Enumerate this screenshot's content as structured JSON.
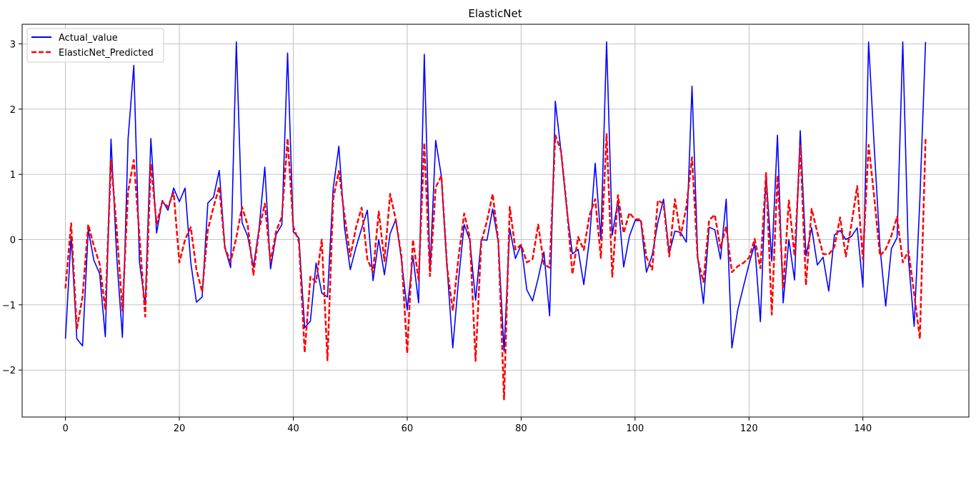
{
  "chart_data": {
    "type": "line",
    "title": "ElasticNet",
    "xlabel": "",
    "ylabel": "",
    "xlim": [
      -7.6,
      158.6
    ],
    "ylim": [
      -2.72,
      3.3
    ],
    "xticks": [
      0,
      20,
      40,
      60,
      80,
      100,
      120,
      140
    ],
    "yticks": [
      -2,
      -1,
      0,
      1,
      2,
      3
    ],
    "xtick_labels": [
      "0",
      "20",
      "40",
      "60",
      "80",
      "100",
      "120",
      "140"
    ],
    "ytick_labels": [
      "−2",
      "−1",
      "0",
      "1",
      "2",
      "3"
    ],
    "grid": true,
    "legend_position": "upper left",
    "series": [
      {
        "name": "Actual_value",
        "color": "#0000ff",
        "style": "solid",
        "values": [
          -1.52,
          0.05,
          -1.52,
          -1.63,
          0.15,
          -0.32,
          -0.52,
          -1.49,
          1.54,
          -0.26,
          -1.5,
          1.55,
          2.67,
          -0.35,
          -1.0,
          1.55,
          0.1,
          0.6,
          0.45,
          0.79,
          0.58,
          0.79,
          -0.35,
          -0.96,
          -0.88,
          0.56,
          0.65,
          1.06,
          -0.13,
          -0.43,
          3.03,
          0.26,
          0.05,
          -0.42,
          0.18,
          1.11,
          -0.45,
          0.08,
          0.23,
          2.86,
          0.12,
          0.02,
          -1.35,
          -1.25,
          -0.36,
          -0.82,
          -0.88,
          0.78,
          1.43,
          0.18,
          -0.46,
          -0.12,
          0.17,
          0.45,
          -0.63,
          0.0,
          -0.54,
          0.09,
          0.31,
          -0.32,
          -1.08,
          -0.25,
          -0.97,
          2.84,
          -0.49,
          1.52,
          0.97,
          -0.43,
          -1.66,
          -0.63,
          0.23,
          -0.01,
          -0.93,
          0.0,
          -0.01,
          0.47,
          -0.05,
          -1.71,
          0.17,
          -0.29,
          -0.08,
          -0.77,
          -0.94,
          -0.59,
          -0.19,
          -1.17,
          2.12,
          1.35,
          0.48,
          -0.22,
          -0.15,
          -0.69,
          0.0,
          1.17,
          0.0,
          3.03,
          0.07,
          0.6,
          -0.42,
          0.05,
          0.29,
          0.29,
          -0.5,
          -0.24,
          0.26,
          0.62,
          -0.21,
          0.13,
          0.11,
          -0.04,
          2.35,
          -0.27,
          -0.98,
          0.19,
          0.15,
          -0.3,
          0.62,
          -1.66,
          -1.09,
          -0.73,
          -0.38,
          -0.07,
          -1.26,
          1.0,
          -0.33,
          1.6,
          -0.97,
          0.0,
          -0.62,
          1.67,
          -0.25,
          0.18,
          -0.39,
          -0.27,
          -0.79,
          0.07,
          0.14,
          0.0,
          0.05,
          0.18,
          -0.73,
          3.03,
          1.4,
          -0.12,
          -1.02,
          -0.14,
          0.03,
          3.03,
          -0.3,
          -1.33,
          0.62,
          3.03
        ]
      },
      {
        "name": "ElasticNet_Predicted",
        "color": "#ff0000",
        "style": "dashed",
        "values": [
          -0.75,
          0.25,
          -1.37,
          -0.88,
          0.23,
          -0.1,
          -0.37,
          -1.08,
          1.22,
          0.16,
          -1.09,
          0.74,
          1.22,
          0.05,
          -1.18,
          1.16,
          0.24,
          0.58,
          0.5,
          0.72,
          -0.35,
          0.0,
          0.19,
          -0.46,
          -0.8,
          0.15,
          0.5,
          0.81,
          -0.13,
          -0.34,
          0.03,
          0.5,
          0.22,
          -0.54,
          0.15,
          0.55,
          -0.34,
          0.13,
          0.35,
          1.55,
          0.2,
          -0.04,
          -1.73,
          -0.57,
          -0.65,
          0.0,
          -1.85,
          0.62,
          1.05,
          0.37,
          -0.26,
          0.18,
          0.49,
          -0.3,
          -0.5,
          0.43,
          -0.33,
          0.7,
          0.3,
          -0.26,
          -1.74,
          0.0,
          -0.62,
          1.48,
          -0.56,
          0.8,
          0.98,
          -0.42,
          -1.09,
          -0.28,
          0.4,
          0.03,
          -1.86,
          -0.04,
          0.28,
          0.7,
          -0.03,
          -2.45,
          0.5,
          -0.15,
          -0.08,
          -0.35,
          -0.3,
          0.23,
          -0.38,
          -0.43,
          1.6,
          1.36,
          0.51,
          -0.53,
          0.04,
          -0.16,
          0.37,
          0.62,
          -0.28,
          1.62,
          -0.57,
          0.68,
          0.1,
          0.41,
          0.31,
          0.31,
          -0.27,
          -0.46,
          0.6,
          0.55,
          -0.26,
          0.62,
          0.06,
          0.5,
          1.26,
          -0.3,
          -0.65,
          0.3,
          0.38,
          -0.13,
          0.2,
          -0.5,
          -0.41,
          -0.36,
          -0.28,
          0.01,
          -0.44,
          1.02,
          -1.15,
          0.98,
          -0.75,
          0.6,
          -0.25,
          1.44,
          -0.7,
          0.47,
          0.11,
          -0.22,
          -0.23,
          -0.11,
          0.34,
          -0.26,
          0.24,
          0.82,
          -0.3,
          1.45,
          0.64,
          -0.25,
          -0.15,
          0.06,
          0.35,
          -0.35,
          -0.17,
          -0.83,
          -1.52,
          1.55
        ]
      }
    ]
  }
}
